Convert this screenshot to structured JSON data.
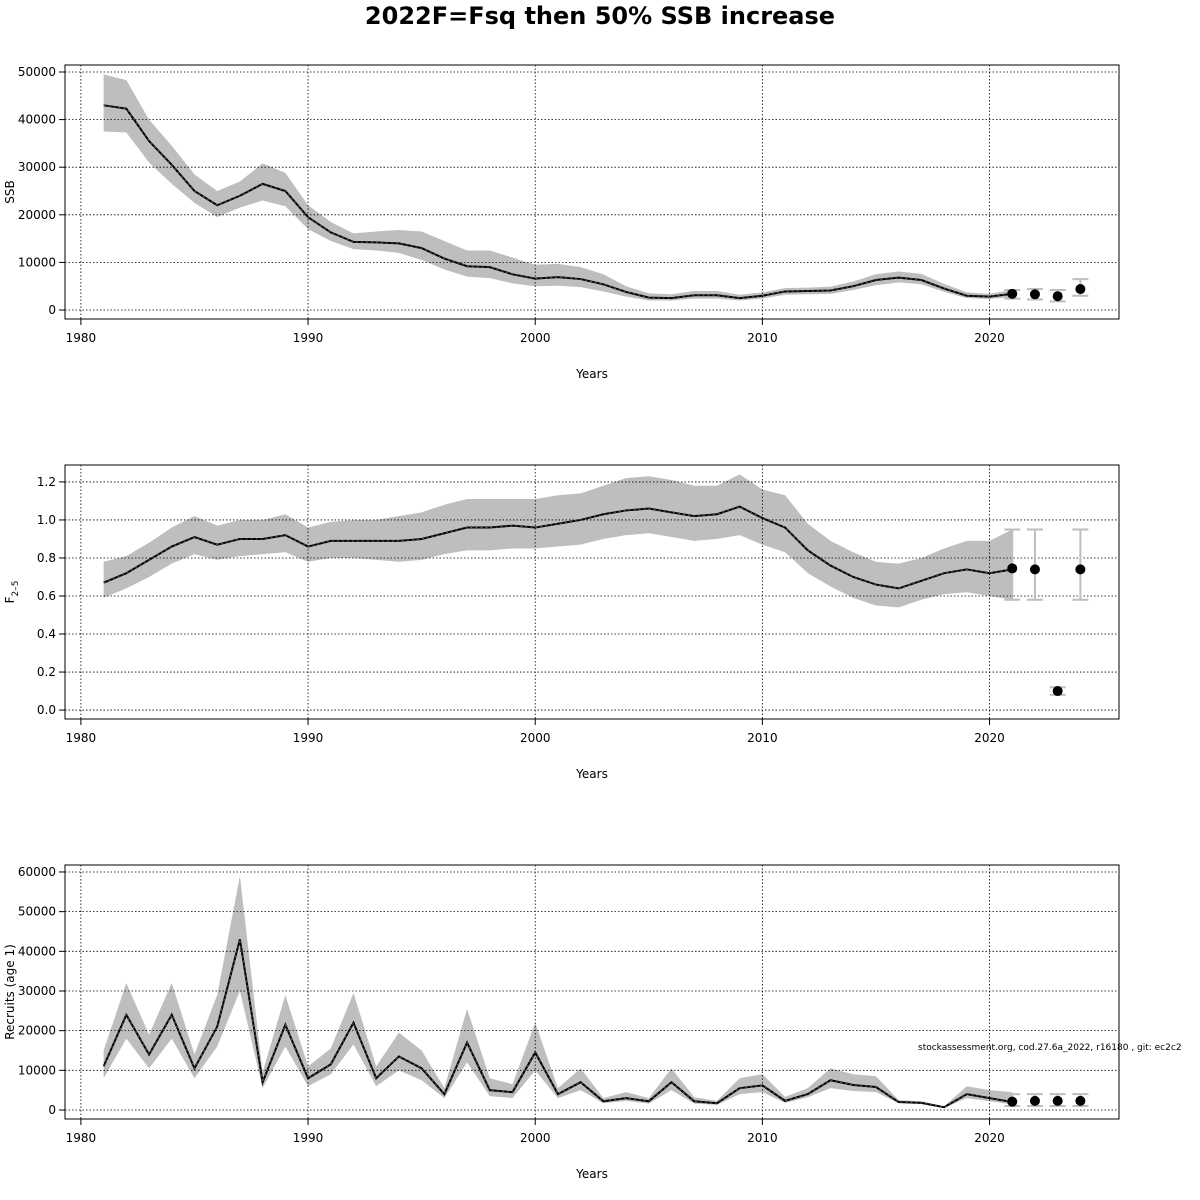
{
  "title": "2022F=Fsq then 50% SSB increase",
  "note": "stockassessment.org, cod.27.6a_2022, r16180 , git: ec2c2",
  "colors": {
    "band": "#bebebe",
    "line": "#000000",
    "errorbar": "#bebebe",
    "grid": "#000000"
  },
  "chart_data": [
    {
      "type": "line",
      "xlabel": "Years",
      "ylabel": "SSB",
      "xlim": [
        1979.3,
        2025.7
      ],
      "ylim": [
        -1890,
        51470
      ],
      "xticks": [
        1980,
        1990,
        2000,
        2010,
        2020
      ],
      "yticks": [
        0,
        10000,
        20000,
        30000,
        40000,
        50000
      ],
      "grid": true,
      "years": [
        1981,
        1982,
        1983,
        1984,
        1985,
        1986,
        1987,
        1988,
        1989,
        1990,
        1991,
        1992,
        1993,
        1994,
        1995,
        1996,
        1997,
        1998,
        1999,
        2000,
        2001,
        2002,
        2003,
        2004,
        2005,
        2006,
        2007,
        2008,
        2009,
        2010,
        2011,
        2012,
        2013,
        2014,
        2015,
        2016,
        2017,
        2018,
        2019,
        2020,
        2021
      ],
      "estimate": [
        43000,
        42300,
        35500,
        30500,
        25000,
        22000,
        24000,
        26500,
        25000,
        19500,
        16300,
        14300,
        14200,
        14000,
        13000,
        10800,
        9200,
        9000,
        7500,
        6600,
        6900,
        6500,
        5400,
        3800,
        2600,
        2500,
        3100,
        3100,
        2500,
        3000,
        3900,
        4000,
        4100,
        5000,
        6300,
        6800,
        6300,
        4500,
        3000,
        2800,
        3400
      ],
      "lower": [
        37500,
        37300,
        31000,
        26500,
        22500,
        19500,
        21500,
        23000,
        21800,
        17000,
        14500,
        12800,
        12500,
        12000,
        10500,
        8500,
        7000,
        6700,
        5600,
        5000,
        5100,
        4800,
        3900,
        2800,
        2000,
        2000,
        2400,
        2400,
        2000,
        2400,
        3200,
        3300,
        3400,
        4200,
        5200,
        5800,
        5400,
        3800,
        2500,
        2300,
        2700
      ],
      "upper": [
        49500,
        48300,
        40000,
        34500,
        28500,
        25000,
        27000,
        30800,
        28800,
        22000,
        18500,
        16100,
        16500,
        16800,
        16500,
        14500,
        12500,
        12500,
        11000,
        9500,
        9700,
        9000,
        7500,
        5000,
        3500,
        3300,
        4000,
        4000,
        3200,
        3700,
        4600,
        4700,
        4900,
        6000,
        7500,
        8100,
        7600,
        5500,
        3700,
        3400,
        4200
      ],
      "forecast": {
        "years": [
          2021,
          2022,
          2023,
          2024
        ],
        "estimate": [
          3400,
          3300,
          2900,
          4400
        ],
        "lower": [
          2400,
          2200,
          1800,
          3000
        ],
        "upper": [
          4200,
          4400,
          4200,
          6500
        ]
      }
    },
    {
      "type": "line",
      "xlabel": "Years",
      "ylabel": "F",
      "ylabel_sub": "2–5",
      "xlim": [
        1979.3,
        2025.7
      ],
      "ylim": [
        -0.047,
        1.289
      ],
      "xticks": [
        1980,
        1990,
        2000,
        2010,
        2020
      ],
      "yticks": [
        0.0,
        0.2,
        0.4,
        0.6,
        0.8,
        1.0,
        1.2
      ],
      "ytick_labels": [
        "0.0",
        "0.2",
        "0.4",
        "0.6",
        "0.8",
        "1.0",
        "1.2"
      ],
      "grid": true,
      "years": [
        1981,
        1982,
        1983,
        1984,
        1985,
        1986,
        1987,
        1988,
        1989,
        1990,
        1991,
        1992,
        1993,
        1994,
        1995,
        1996,
        1997,
        1998,
        1999,
        2000,
        2001,
        2002,
        2003,
        2004,
        2005,
        2006,
        2007,
        2008,
        2009,
        2010,
        2011,
        2012,
        2013,
        2014,
        2015,
        2016,
        2017,
        2018,
        2019,
        2020,
        2021
      ],
      "estimate": [
        0.67,
        0.72,
        0.79,
        0.86,
        0.91,
        0.87,
        0.9,
        0.9,
        0.92,
        0.86,
        0.89,
        0.89,
        0.89,
        0.89,
        0.9,
        0.93,
        0.96,
        0.96,
        0.97,
        0.96,
        0.98,
        1.0,
        1.03,
        1.05,
        1.06,
        1.04,
        1.02,
        1.03,
        1.07,
        1.01,
        0.96,
        0.84,
        0.76,
        0.7,
        0.66,
        0.64,
        0.68,
        0.72,
        0.74,
        0.72,
        0.74
      ],
      "lower": [
        0.59,
        0.64,
        0.7,
        0.77,
        0.82,
        0.79,
        0.81,
        0.82,
        0.83,
        0.78,
        0.8,
        0.8,
        0.79,
        0.78,
        0.79,
        0.82,
        0.84,
        0.84,
        0.85,
        0.85,
        0.86,
        0.87,
        0.9,
        0.92,
        0.93,
        0.91,
        0.89,
        0.9,
        0.92,
        0.87,
        0.83,
        0.72,
        0.65,
        0.59,
        0.55,
        0.54,
        0.58,
        0.61,
        0.62,
        0.6,
        0.58
      ],
      "upper": [
        0.78,
        0.81,
        0.88,
        0.96,
        1.02,
        0.97,
        1.0,
        1.0,
        1.03,
        0.96,
        0.99,
        1.0,
        1.0,
        1.02,
        1.04,
        1.08,
        1.11,
        1.11,
        1.11,
        1.11,
        1.13,
        1.14,
        1.18,
        1.22,
        1.23,
        1.21,
        1.18,
        1.18,
        1.24,
        1.16,
        1.13,
        0.98,
        0.89,
        0.83,
        0.78,
        0.77,
        0.8,
        0.85,
        0.89,
        0.89,
        0.95
      ],
      "forecast": {
        "years": [
          2021,
          2022,
          2023,
          2024
        ],
        "estimate": [
          0.745,
          0.74,
          0.1,
          0.74
        ],
        "lower": [
          0.58,
          0.58,
          0.08,
          0.58
        ],
        "upper": [
          0.95,
          0.95,
          0.12,
          0.95
        ]
      }
    },
    {
      "type": "line",
      "xlabel": "Years",
      "ylabel": "Recruits (age 1)",
      "xlim": [
        1979.3,
        2025.7
      ],
      "ylim": [
        -2270,
        61760
      ],
      "xticks": [
        1980,
        1990,
        2000,
        2010,
        2020
      ],
      "yticks": [
        0,
        10000,
        20000,
        30000,
        40000,
        50000,
        60000
      ],
      "grid": true,
      "years": [
        1981,
        1982,
        1983,
        1984,
        1985,
        1986,
        1987,
        1988,
        1989,
        1990,
        1991,
        1992,
        1993,
        1994,
        1995,
        1996,
        1997,
        1998,
        1999,
        2000,
        2001,
        2002,
        2003,
        2004,
        2005,
        2006,
        2007,
        2008,
        2009,
        2010,
        2011,
        2012,
        2013,
        2014,
        2015,
        2016,
        2017,
        2018,
        2019,
        2020,
        2021
      ],
      "estimate": [
        11000,
        24000,
        14000,
        24000,
        10500,
        21000,
        43000,
        7000,
        21500,
        8000,
        11500,
        22000,
        8000,
        13500,
        10500,
        4000,
        17000,
        5000,
        4500,
        14500,
        4000,
        7000,
        2200,
        3000,
        2200,
        7000,
        2200,
        1700,
        5500,
        6200,
        2300,
        4000,
        7500,
        6300,
        5800,
        2000,
        1800,
        700,
        4000,
        3000,
        2000
      ],
      "lower": [
        8000,
        18000,
        10500,
        18000,
        8000,
        16000,
        30000,
        5500,
        16000,
        6000,
        9000,
        16500,
        6000,
        10000,
        7500,
        3000,
        12000,
        3500,
        3000,
        10000,
        3000,
        5000,
        1700,
        2300,
        1600,
        5000,
        1600,
        1300,
        4000,
        4500,
        1800,
        3200,
        5500,
        4800,
        4500,
        1700,
        1500,
        550,
        3000,
        2200,
        1400
      ],
      "upper": [
        15000,
        32000,
        19000,
        32000,
        14000,
        29000,
        59000,
        9500,
        29000,
        11000,
        15500,
        29500,
        11000,
        19500,
        15000,
        5500,
        25500,
        8000,
        6500,
        22000,
        5500,
        10500,
        3000,
        4500,
        3000,
        10500,
        3200,
        2300,
        8000,
        9000,
        3300,
        5500,
        10500,
        9000,
        8500,
        2500,
        2200,
        900,
        6000,
        5000,
        4500
      ],
      "forecast": {
        "years": [
          2021,
          2022,
          2023,
          2024
        ],
        "estimate": [
          2100,
          2300,
          2300,
          2300
        ],
        "lower": [
          1000,
          1000,
          1000,
          1000
        ],
        "upper": [
          4000,
          4000,
          4000,
          4000
        ]
      }
    }
  ]
}
